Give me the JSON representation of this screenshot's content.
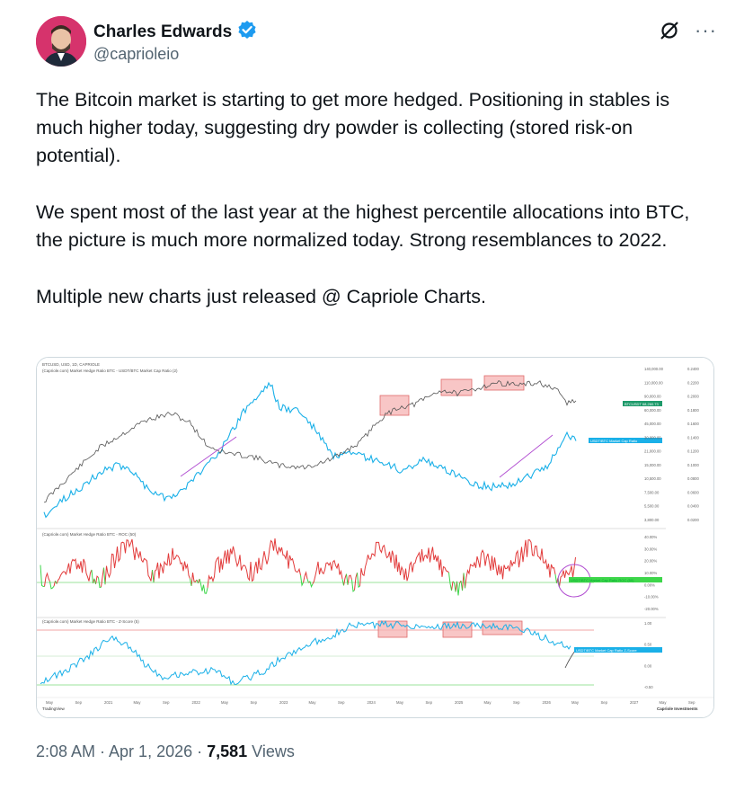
{
  "author": {
    "name": "Charles Edwards",
    "handle": "@caprioleio",
    "verified_badge_color": "#1d9bf0"
  },
  "header_icons": [
    "grok-icon",
    "more-icon"
  ],
  "more_icon_glyph": "···",
  "text": {
    "p1": "The Bitcoin market is starting to get more hedged. Positioning in stables is much higher today, suggesting dry powder is collecting (stored risk-on potential).",
    "p2": "We spent most of the last year at the highest percentile  allocations into BTC, the picture is much more normalized today. Strong resemblances to 2022.",
    "p3": "Multiple new charts just released @ Capriole Charts."
  },
  "chart": {
    "top_header": "BTCUSD, USD, 1D, CAPRIOLE",
    "top_legend": "(Capriole.com) Market Hedge Ratio BTC - USDT/BTC Market Cap Ratio (2)",
    "mid_legend": "(Capriole.com) Market Hedge Ratio BTC - ROC (50)",
    "bot_legend": "(Capriole.com) Market Hedge Ratio BTC - Z-Score (5)",
    "label_btc": "BTCUSDT 68,260.73",
    "label_ratio": "USDT/BTC Market Cap Ratio",
    "label_roc": "USDT/BTC Market Cap Ratio ROC (50)",
    "label_z": "USDT/BTC Market Cap Ratio Z-Score",
    "price_ticks": [
      "140,000.00",
      "110,000.00",
      "90,000.00",
      "60,000.00",
      "45,000.00",
      "30,000.00",
      "21,000.00",
      "15,000.00",
      "10,500.00",
      "7,500.00",
      "5,500.00",
      "3,800.00"
    ],
    "ratio_ticks": [
      "0.2400",
      "0.2200",
      "0.2000",
      "0.1800",
      "0.1600",
      "0.1400",
      "0.1200",
      "0.1000",
      "0.0800",
      "0.0600",
      "0.0400",
      "0.0200"
    ],
    "roc_ticks": [
      "40.00%",
      "30.00%",
      "20.00%",
      "10.00%",
      "0.00%",
      "-10.00%",
      "-20.00%"
    ],
    "z_ticks": [
      "1.00",
      "0.50",
      "0.00",
      "-0.50"
    ],
    "x_ticks": [
      "May",
      "Sep",
      "2021",
      "May",
      "Sep",
      "2022",
      "May",
      "Sep",
      "2023",
      "May",
      "Sep",
      "2024",
      "May",
      "Sep",
      "2025",
      "May",
      "Sep",
      "2026",
      "May",
      "Sep",
      "2027",
      "May",
      "Sep"
    ],
    "footer_left": "TradingView",
    "footer_right": "Capriole Investments",
    "colors": {
      "price": "#555555",
      "ratio": "#1ab0e8",
      "roc_up": "#e23b3b",
      "roc_down": "#3dd64a",
      "box": "#f08d8d",
      "circle": "#b04ad0"
    }
  },
  "meta": {
    "time": "2:08 AM · Apr 1, 2026 · ",
    "views_count": "7,581",
    "views_label": " Views"
  }
}
